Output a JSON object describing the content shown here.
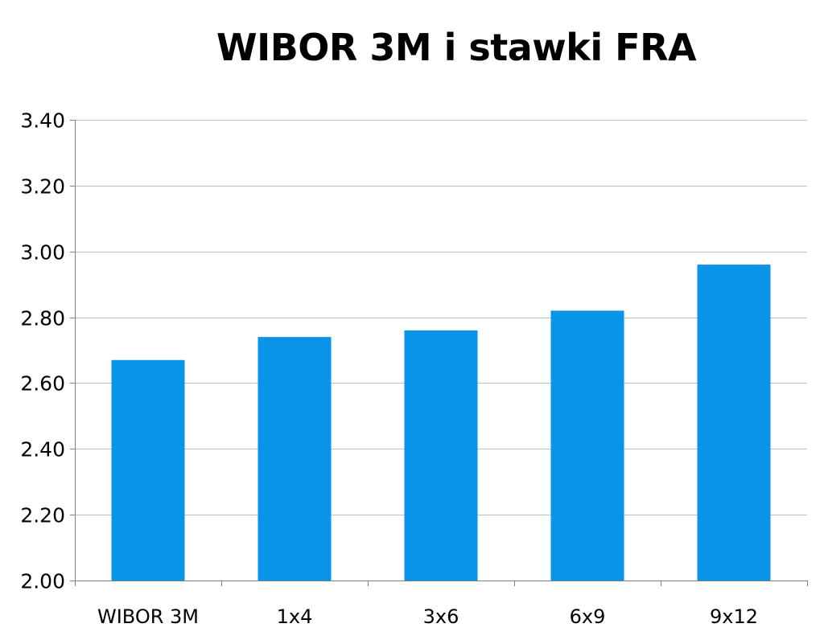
{
  "chart_data": {
    "type": "bar",
    "title": "WIBOR 3M i stawki FRA",
    "xlabel": "",
    "ylabel": "",
    "categories": [
      "WIBOR 3M",
      "1x4",
      "3x6",
      "6x9",
      "9x12"
    ],
    "values": [
      2.67,
      2.74,
      2.76,
      2.82,
      2.96
    ],
    "ylim": [
      2.0,
      3.4
    ],
    "yticks": [
      "2.00",
      "2.20",
      "2.40",
      "2.60",
      "2.80",
      "3.00",
      "3.20",
      "3.40"
    ],
    "grid": true,
    "legend": "none",
    "colors": {
      "bar": "#0994E8",
      "grid": "#BFBFBF",
      "axis": "#808080"
    }
  }
}
